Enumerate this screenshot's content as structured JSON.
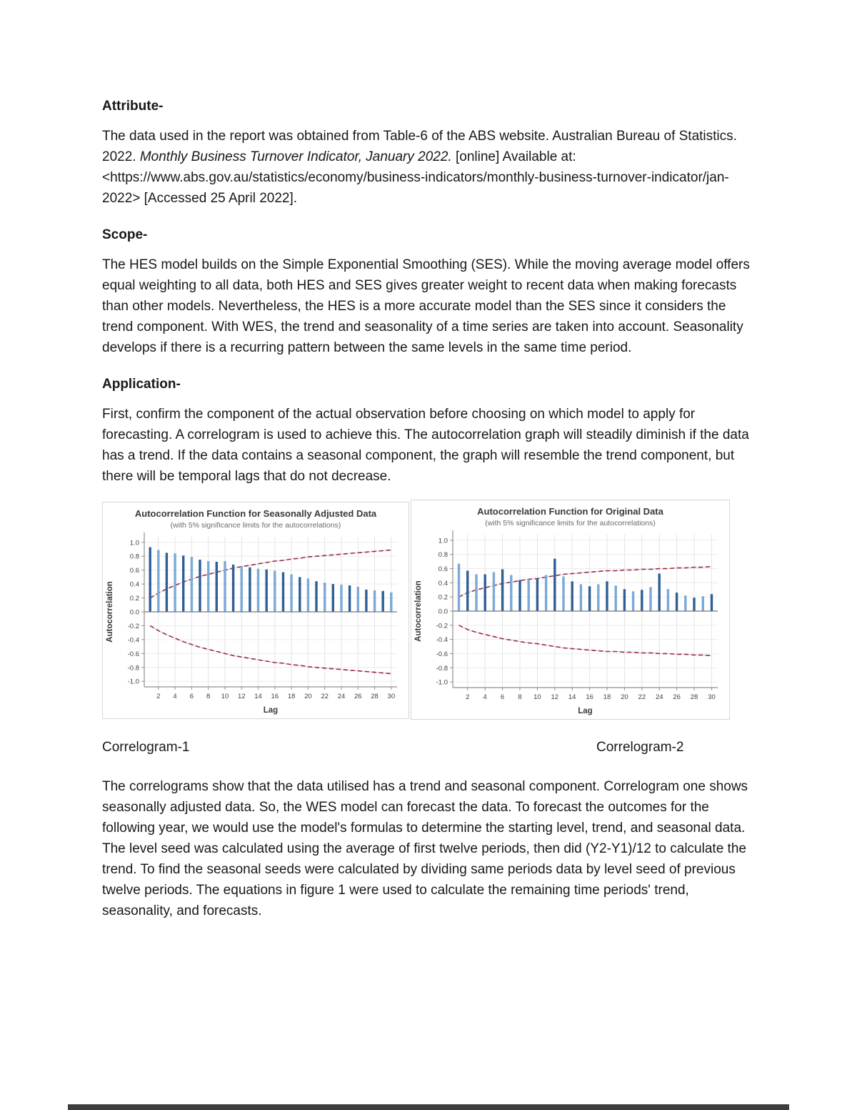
{
  "document": {
    "sections": [
      {
        "heading": "Attribute-",
        "runs": [
          {
            "text": "The data used in the report was obtained from Table-6 of the ABS website. Australian Bureau of Statistics. 2022. ",
            "italic": false
          },
          {
            "text": "Monthly Business Turnover Indicator, January 2022.",
            "italic": true
          },
          {
            "text": " [online] Available at: <https://www.abs.gov.au/statistics/economy/business-indicators/monthly-business-turnover-indicator/jan-2022> [Accessed 25 April 2022].",
            "italic": false
          }
        ]
      },
      {
        "heading": "Scope-",
        "runs": [
          {
            "text": "The HES model builds on the Simple Exponential Smoothing (SES).  While the moving average model offers equal weighting to all data, both HES and SES gives greater weight to recent data when making forecasts than other models. Nevertheless, the HES is a more accurate model than the SES since it considers the trend component. With WES, the trend and seasonality of a time series are taken into account. Seasonality develops if there is a recurring pattern between the same levels in the same time period.",
            "italic": false
          }
        ]
      },
      {
        "heading": "Application-",
        "runs": [
          {
            "text": "First, confirm the component of the actual observation before choosing on which model to apply for forecasting. A correlogram is used to achieve this. The autocorrelation graph will steadily diminish if the data has a trend. If the data contains a seasonal component, the graph will resemble the trend component, but there will be temporal lags that do not decrease.",
            "italic": false
          }
        ]
      }
    ],
    "figure_captions": [
      "Correlogram-1",
      "Correlogram-2"
    ],
    "closing_paragraph": "The correlograms show that the data utilised has a trend and seasonal component. Correlogram one shows seasonally adjusted data. So, the WES model can forecast the data. To forecast the outcomes for the following year, we would use the model's formulas to determine the starting level, trend, and seasonal data. The level seed was calculated using the average of first twelve periods, then did (Y2-Y1)/12 to calculate the trend. To find the seasonal seeds were calculated by dividing same periods data by level seed of previous twelve periods. The equations in figure 1 were used to calculate the remaining time periods' trend, seasonality, and forecasts."
  },
  "chart_data": [
    {
      "type": "bar",
      "title": "Autocorrelation Function for Seasonally Adjusted Data",
      "subtitle": "(with 5% significance limits for the autocorrelations)",
      "xlabel": "Lag",
      "ylabel": "Autocorrelation",
      "ylim": [
        -1.0,
        1.0
      ],
      "xticks": [
        2,
        4,
        6,
        8,
        10,
        12,
        14,
        16,
        18,
        20,
        22,
        24,
        26,
        28,
        30
      ],
      "yticks": [
        1.0,
        0.8,
        0.6,
        0.4,
        0.2,
        0.0,
        -0.2,
        -0.4,
        -0.6,
        -0.8,
        -1.0
      ],
      "x": [
        1,
        2,
        3,
        4,
        5,
        6,
        7,
        8,
        9,
        10,
        11,
        12,
        13,
        14,
        15,
        16,
        17,
        18,
        19,
        20,
        21,
        22,
        23,
        24,
        25,
        26,
        27,
        28,
        29,
        30
      ],
      "values": [
        0.93,
        0.89,
        0.85,
        0.84,
        0.81,
        0.79,
        0.75,
        0.73,
        0.72,
        0.73,
        0.68,
        0.66,
        0.64,
        0.62,
        0.61,
        0.59,
        0.57,
        0.54,
        0.5,
        0.48,
        0.44,
        0.42,
        0.4,
        0.39,
        0.38,
        0.36,
        0.32,
        0.31,
        0.3,
        0.28
      ],
      "significance_upper": [
        0.2,
        0.27,
        0.33,
        0.38,
        0.43,
        0.47,
        0.51,
        0.54,
        0.57,
        0.6,
        0.63,
        0.65,
        0.67,
        0.69,
        0.71,
        0.73,
        0.74,
        0.76,
        0.77,
        0.79,
        0.8,
        0.81,
        0.82,
        0.83,
        0.84,
        0.85,
        0.86,
        0.87,
        0.88,
        0.89
      ],
      "significance_lower": [
        -0.2,
        -0.27,
        -0.33,
        -0.38,
        -0.43,
        -0.47,
        -0.51,
        -0.54,
        -0.57,
        -0.6,
        -0.63,
        -0.65,
        -0.67,
        -0.69,
        -0.71,
        -0.73,
        -0.74,
        -0.76,
        -0.77,
        -0.79,
        -0.8,
        -0.81,
        -0.82,
        -0.83,
        -0.84,
        -0.85,
        -0.86,
        -0.87,
        -0.88,
        -0.89
      ],
      "bar_colors": [
        "#2e5f97",
        "#7aa9d8"
      ],
      "limit_color": "#8c3049",
      "limit_color_light": "#f3c9d0",
      "grid": true,
      "legend": "none"
    },
    {
      "type": "bar",
      "title": "Autocorrelation Function for Original Data",
      "subtitle": "(with 5% significance limits for the autocorrelations)",
      "xlabel": "Lag",
      "ylabel": "Autocorrelation",
      "ylim": [
        -1.0,
        1.0
      ],
      "xticks": [
        2,
        4,
        6,
        8,
        10,
        12,
        14,
        16,
        18,
        20,
        22,
        24,
        26,
        28,
        30
      ],
      "yticks": [
        1.0,
        0.8,
        0.6,
        0.4,
        0.2,
        0.0,
        -0.2,
        -0.4,
        -0.6,
        -0.8,
        -1.0
      ],
      "x": [
        1,
        2,
        3,
        4,
        5,
        6,
        7,
        8,
        9,
        10,
        11,
        12,
        13,
        14,
        15,
        16,
        17,
        18,
        19,
        20,
        21,
        22,
        23,
        24,
        25,
        26,
        27,
        28,
        29,
        30
      ],
      "values": [
        0.67,
        0.57,
        0.52,
        0.52,
        0.55,
        0.59,
        0.51,
        0.44,
        0.45,
        0.46,
        0.51,
        0.74,
        0.49,
        0.42,
        0.38,
        0.35,
        0.38,
        0.42,
        0.36,
        0.31,
        0.28,
        0.3,
        0.34,
        0.53,
        0.31,
        0.26,
        0.22,
        0.19,
        0.21,
        0.24
      ],
      "significance_upper": [
        0.2,
        0.26,
        0.3,
        0.33,
        0.36,
        0.39,
        0.41,
        0.43,
        0.45,
        0.46,
        0.48,
        0.5,
        0.52,
        0.53,
        0.54,
        0.55,
        0.56,
        0.57,
        0.57,
        0.58,
        0.58,
        0.59,
        0.59,
        0.6,
        0.6,
        0.61,
        0.61,
        0.62,
        0.62,
        0.63
      ],
      "significance_lower": [
        -0.2,
        -0.26,
        -0.3,
        -0.33,
        -0.36,
        -0.39,
        -0.41,
        -0.43,
        -0.45,
        -0.46,
        -0.48,
        -0.5,
        -0.52,
        -0.53,
        -0.54,
        -0.55,
        -0.56,
        -0.57,
        -0.57,
        -0.58,
        -0.58,
        -0.59,
        -0.59,
        -0.6,
        -0.6,
        -0.61,
        -0.61,
        -0.62,
        -0.62,
        -0.63
      ],
      "bar_colors": [
        "#7aa9d8",
        "#2e5f97"
      ],
      "limit_color": "#8c3049",
      "limit_color_light": "#f3c9d0",
      "grid": true,
      "legend": "none"
    }
  ]
}
